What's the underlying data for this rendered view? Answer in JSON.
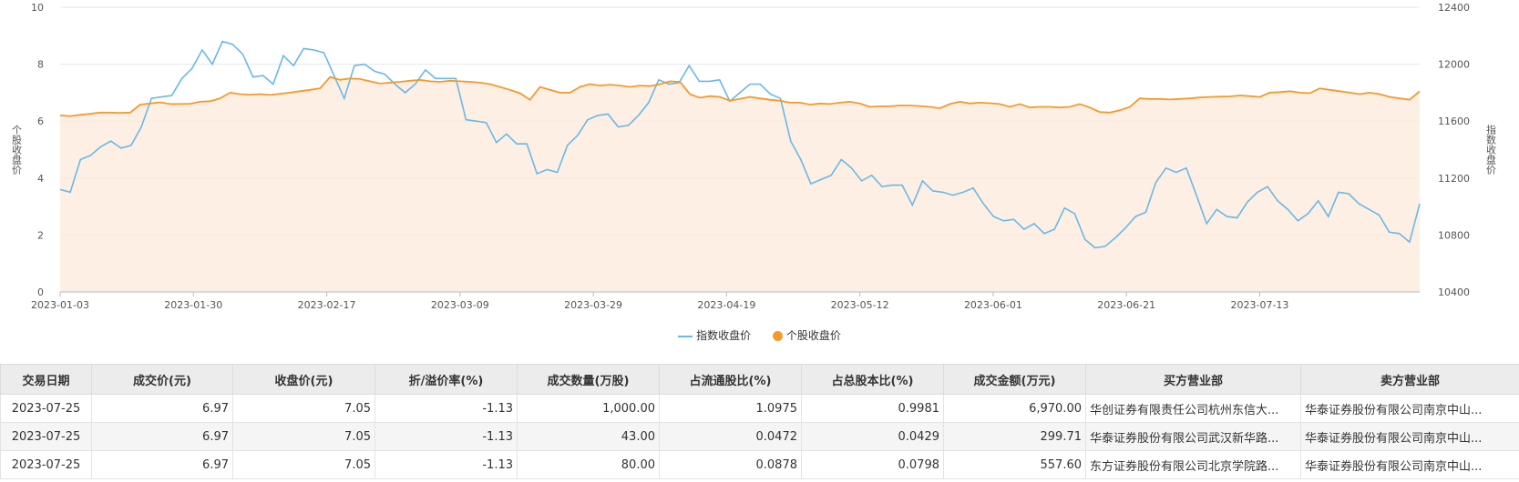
{
  "chart_data": {
    "type": "area",
    "x_ticks": [
      "2023-01-03",
      "2023-01-30",
      "2023-02-17",
      "2023-03-09",
      "2023-03-29",
      "2023-04-19",
      "2023-05-12",
      "2023-06-01",
      "2023-06-21",
      "2023-07-13"
    ],
    "left_axis": {
      "label": "个股收盘价",
      "min": 0,
      "max": 10,
      "ticks": [
        "0",
        "2",
        "4",
        "6",
        "8",
        "10"
      ]
    },
    "right_axis": {
      "label": "指数收盘价",
      "min": 10400,
      "max": 12400,
      "ticks": [
        "10400",
        "10800",
        "11200",
        "11600",
        "12000",
        "12400"
      ]
    },
    "series": [
      {
        "name": "指数收盘价",
        "axis": "right",
        "color": "#6ab8e6",
        "values": [
          11120,
          11100,
          11330,
          11360,
          11420,
          11460,
          11410,
          11430,
          11560,
          11760,
          11770,
          11780,
          11900,
          11970,
          12100,
          12000,
          12160,
          12140,
          12070,
          11910,
          11920,
          11860,
          12060,
          11990,
          12110,
          12100,
          12080,
          11920,
          11760,
          11990,
          12000,
          11950,
          11930,
          11860,
          11800,
          11860,
          11960,
          11900,
          11900,
          11900,
          11610,
          11600,
          11590,
          11450,
          11510,
          11440,
          11440,
          11230,
          11260,
          11240,
          11430,
          11500,
          11610,
          11640,
          11650,
          11560,
          11570,
          11640,
          11730,
          11890,
          11860,
          11870,
          11990,
          11880,
          11880,
          11890,
          11740,
          11800,
          11860,
          11860,
          11790,
          11760,
          11460,
          11330,
          11160,
          11190,
          11220,
          11330,
          11270,
          11180,
          11220,
          11140,
          11150,
          11150,
          11010,
          11180,
          11110,
          11100,
          11080,
          11100,
          11130,
          11020,
          10930,
          10900,
          10910,
          10840,
          10880,
          10810,
          10840,
          10990,
          10950,
          10770,
          10710,
          10720,
          10780,
          10850,
          10930,
          10960,
          11170,
          11270,
          11240,
          11270,
          11080,
          10880,
          10980,
          10930,
          10920,
          11030,
          11100,
          11140,
          11040,
          10980,
          10900,
          10950,
          11040,
          10930,
          11100,
          11090,
          11020,
          10980,
          10940,
          10820,
          10810,
          10750,
          11020
        ]
      },
      {
        "name": "个股收盘价",
        "axis": "left",
        "color": "#f39a2b",
        "values": [
          6.2,
          6.18,
          6.22,
          6.26,
          6.3,
          6.3,
          6.29,
          6.3,
          6.58,
          6.62,
          6.66,
          6.6,
          6.6,
          6.61,
          6.68,
          6.7,
          6.8,
          7.0,
          6.95,
          6.93,
          6.95,
          6.92,
          6.96,
          7.0,
          7.05,
          7.1,
          7.15,
          7.55,
          7.45,
          7.5,
          7.48,
          7.4,
          7.32,
          7.35,
          7.38,
          7.42,
          7.45,
          7.4,
          7.38,
          7.42,
          7.4,
          7.38,
          7.35,
          7.3,
          7.2,
          7.1,
          6.98,
          6.75,
          7.2,
          7.1,
          7.0,
          7.0,
          7.2,
          7.3,
          7.25,
          7.28,
          7.25,
          7.2,
          7.25,
          7.23,
          7.3,
          7.4,
          7.38,
          6.95,
          6.82,
          6.88,
          6.85,
          6.72,
          6.78,
          6.85,
          6.8,
          6.75,
          6.72,
          6.65,
          6.65,
          6.58,
          6.62,
          6.6,
          6.65,
          6.68,
          6.62,
          6.5,
          6.52,
          6.52,
          6.55,
          6.55,
          6.53,
          6.5,
          6.45,
          6.6,
          6.68,
          6.62,
          6.65,
          6.63,
          6.6,
          6.5,
          6.6,
          6.48,
          6.5,
          6.5,
          6.48,
          6.5,
          6.6,
          6.48,
          6.32,
          6.3,
          6.38,
          6.5,
          6.8,
          6.78,
          6.78,
          6.76,
          6.78,
          6.8,
          6.83,
          6.85,
          6.86,
          6.87,
          6.9,
          6.88,
          6.85,
          7.0,
          7.02,
          7.05,
          7.0,
          6.98,
          7.15,
          7.1,
          7.05,
          7.0,
          6.95,
          7.0,
          6.95,
          6.85,
          6.8,
          6.75,
          7.05
        ]
      }
    ]
  },
  "legend": {
    "index_label": "指数收盘价",
    "stock_label": "个股收盘价"
  },
  "table": {
    "headers": [
      "交易日期",
      "成交价(元)",
      "收盘价(元)",
      "折/溢价率(%)",
      "成交数量(万股)",
      "占流通股比(%)",
      "占总股本比(%)",
      "成交金额(万元)",
      "买方营业部",
      "卖方营业部"
    ],
    "rows": [
      [
        "2023-07-25",
        "6.97",
        "7.05",
        "-1.13",
        "1,000.00",
        "1.0975",
        "0.9981",
        "6,970.00",
        "华创证券有限责任公司杭州东信大...",
        "华泰证券股份有限公司南京中山..."
      ],
      [
        "2023-07-25",
        "6.97",
        "7.05",
        "-1.13",
        "43.00",
        "0.0472",
        "0.0429",
        "299.71",
        "华泰证券股份有限公司武汉新华路...",
        "华泰证券股份有限公司南京中山..."
      ],
      [
        "2023-07-25",
        "6.97",
        "7.05",
        "-1.13",
        "80.00",
        "0.0878",
        "0.0798",
        "557.60",
        "东方证券股份有限公司北京学院路...",
        "华泰证券股份有限公司南京中山..."
      ]
    ]
  }
}
